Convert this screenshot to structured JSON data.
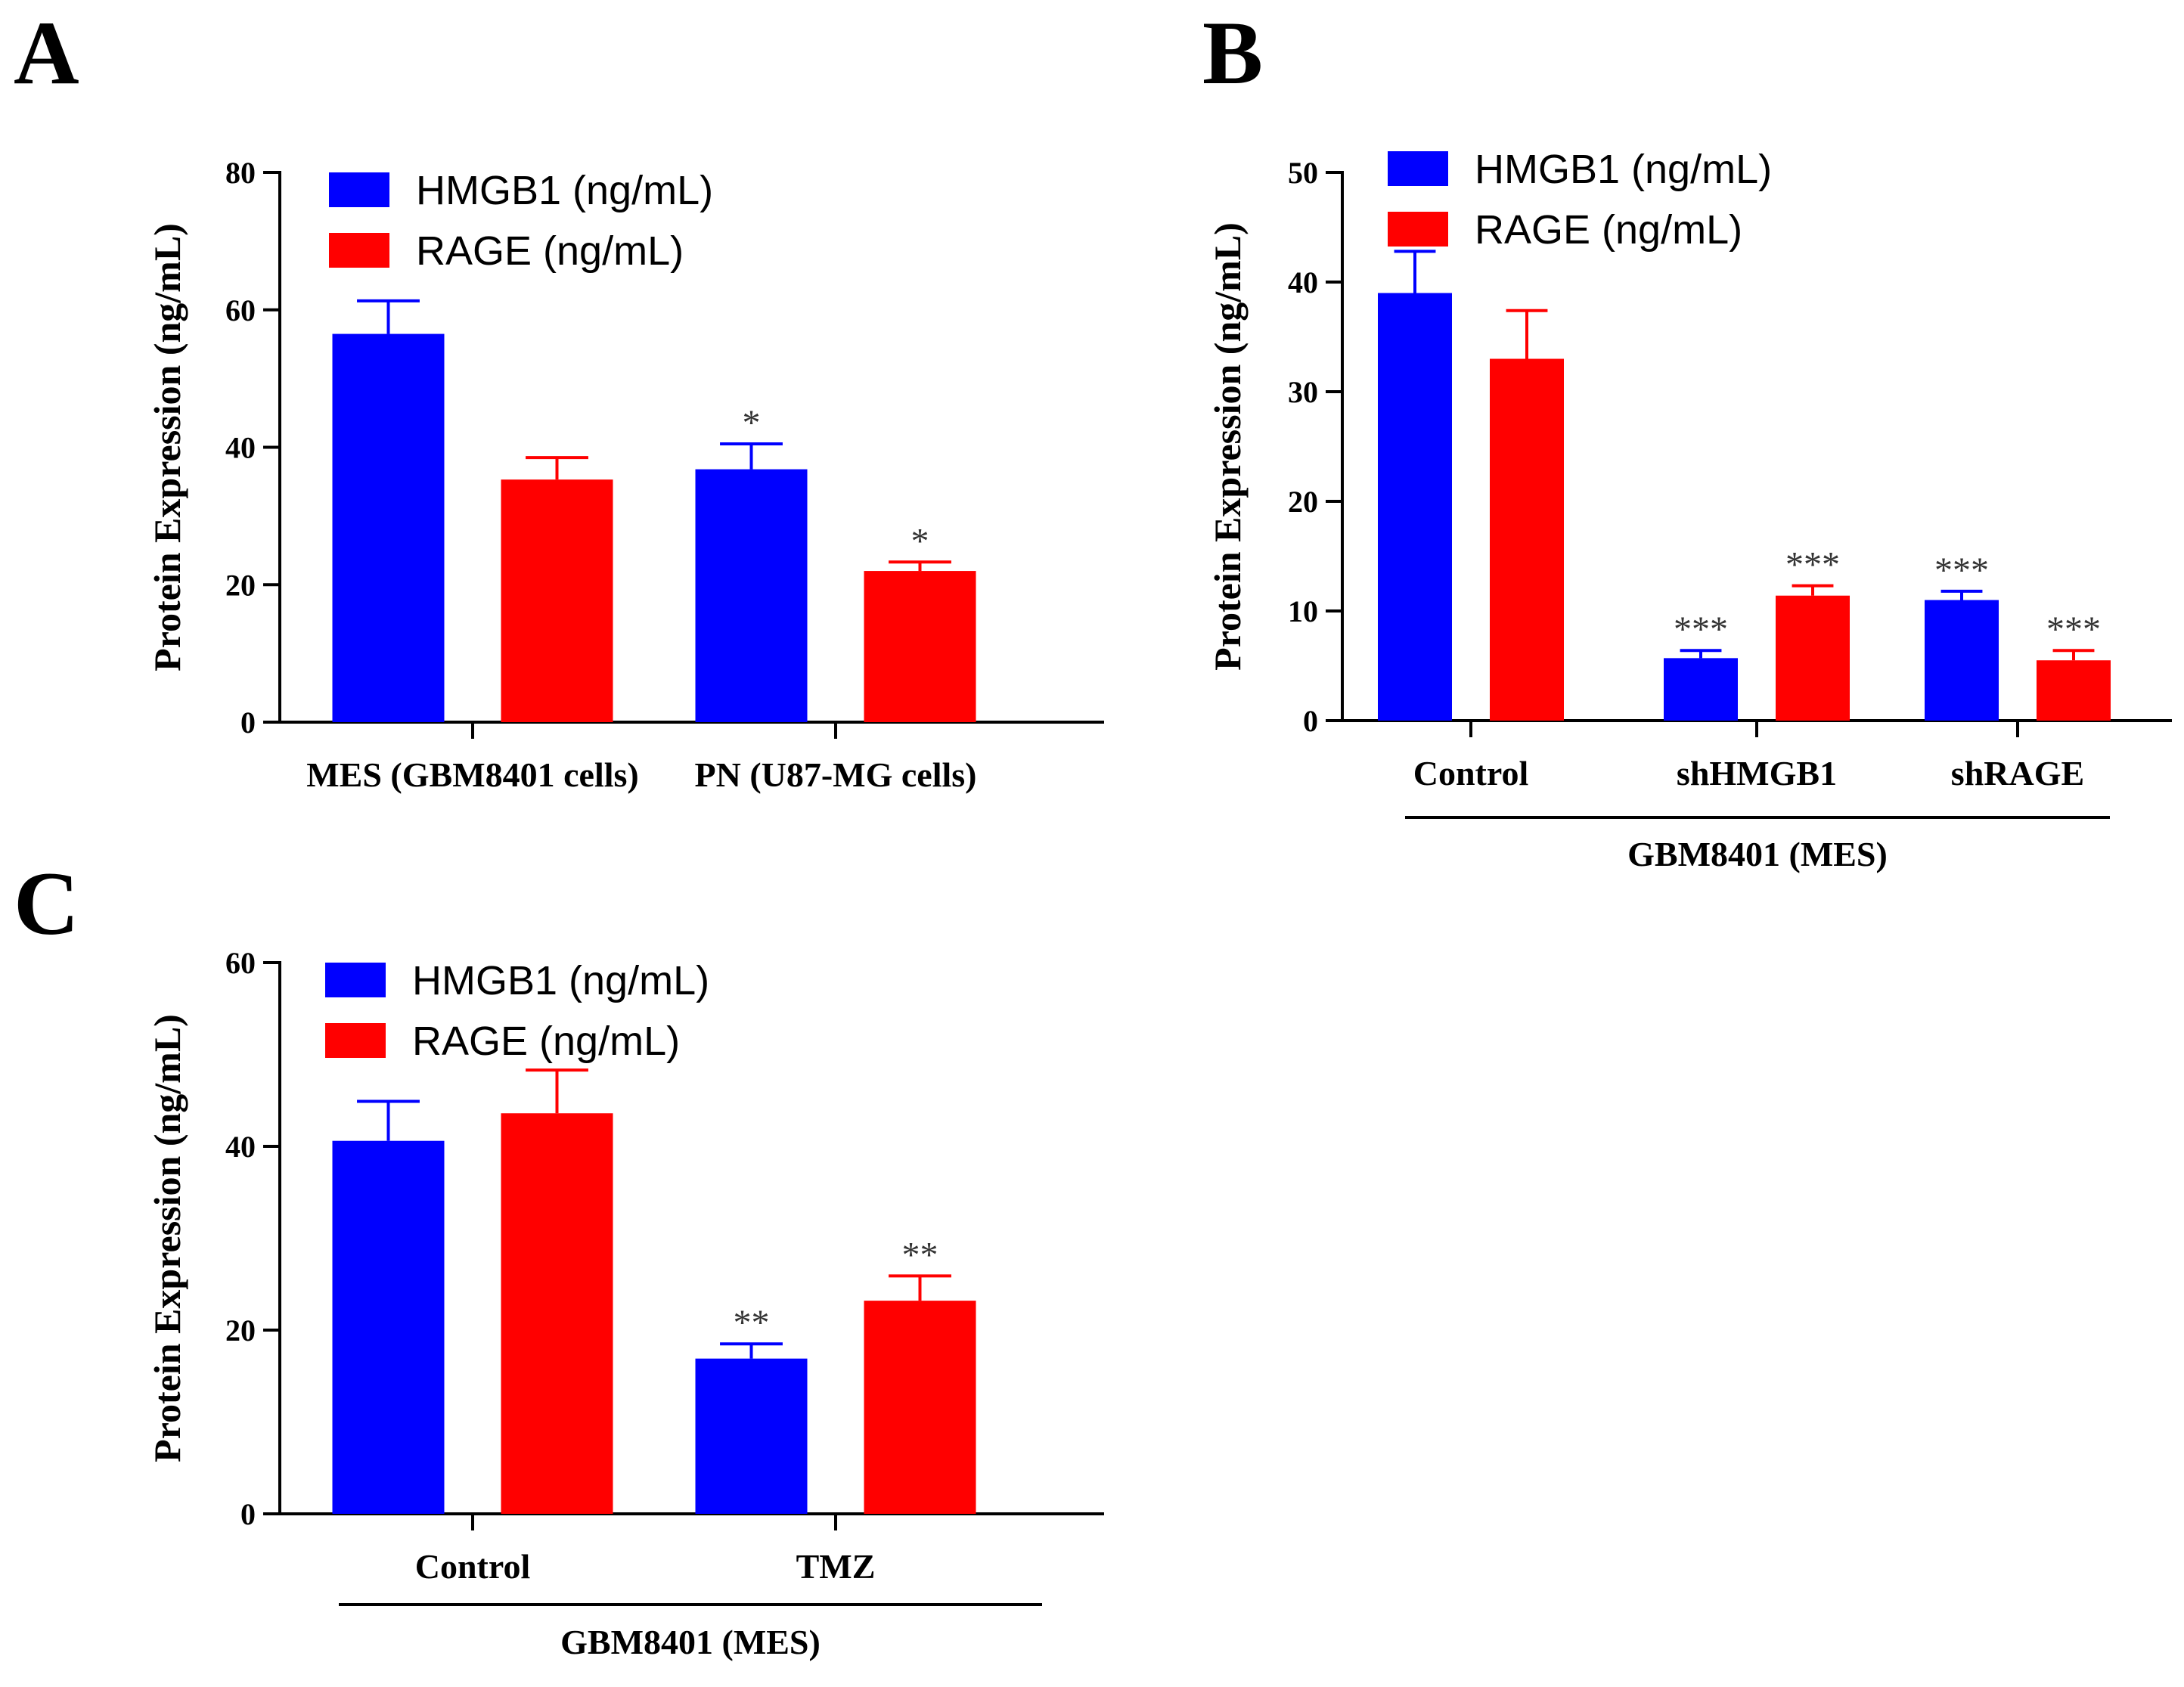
{
  "colors": {
    "hmgb1": "#0000ff",
    "rage": "#ff0000",
    "axis": "#000000"
  },
  "chart_data": [
    {
      "panel": "A",
      "type": "bar",
      "ylabel": "Protein Expression (ng/mL)",
      "ylim": [
        0,
        80
      ],
      "yticks": [
        "0",
        "20",
        "40",
        "60",
        "80"
      ],
      "categories": [
        "MES (GBM8401 cells)",
        "PN (U87-MG cells)"
      ],
      "group_label": "",
      "series": [
        {
          "name": "HMGB1 (ng/mL)",
          "color": "#0000ff",
          "values": [
            56.5,
            36.8
          ],
          "errors": [
            4.8,
            3.7
          ],
          "sig": [
            "",
            "*"
          ]
        },
        {
          "name": "RAGE (ng/mL)",
          "color": "#ff0000",
          "values": [
            35.3,
            22.0
          ],
          "errors": [
            3.2,
            1.3
          ],
          "sig": [
            "",
            "*"
          ]
        }
      ],
      "legend": "top-left"
    },
    {
      "panel": "B",
      "type": "bar",
      "ylabel": "Protein Expression (ng/mL)",
      "ylim": [
        0,
        50
      ],
      "yticks": [
        "0",
        "10",
        "20",
        "30",
        "40",
        "50"
      ],
      "categories": [
        "Control",
        "shHMGB1",
        "shRAGE"
      ],
      "group_label": "GBM8401  (MES)",
      "series": [
        {
          "name": "HMGB1 (ng/mL)",
          "color": "#0000ff",
          "values": [
            39.0,
            5.7,
            11.0
          ],
          "errors": [
            3.8,
            0.7,
            0.8
          ],
          "sig": [
            "",
            "***",
            "***"
          ]
        },
        {
          "name": "RAGE (ng/mL)",
          "color": "#ff0000",
          "values": [
            33.0,
            11.4,
            5.5
          ],
          "errors": [
            4.4,
            0.9,
            0.9
          ],
          "sig": [
            "",
            "***",
            "***"
          ]
        }
      ],
      "legend": "top-left"
    },
    {
      "panel": "C",
      "type": "bar",
      "ylabel": "Protein Expression (ng/mL)",
      "ylim": [
        0,
        60
      ],
      "yticks": [
        "0",
        "20",
        "40",
        "60"
      ],
      "categories": [
        "Control",
        "TMZ"
      ],
      "group_label": "GBM8401 (MES)",
      "series": [
        {
          "name": "HMGB1 (ng/mL)",
          "color": "#0000ff",
          "values": [
            40.6,
            16.9
          ],
          "errors": [
            4.3,
            1.6
          ],
          "sig": [
            "",
            "**"
          ]
        },
        {
          "name": "RAGE (ng/mL)",
          "color": "#ff0000",
          "values": [
            43.6,
            23.2
          ],
          "errors": [
            4.7,
            2.7
          ],
          "sig": [
            "",
            "**"
          ]
        }
      ],
      "legend": "top-left"
    }
  ]
}
